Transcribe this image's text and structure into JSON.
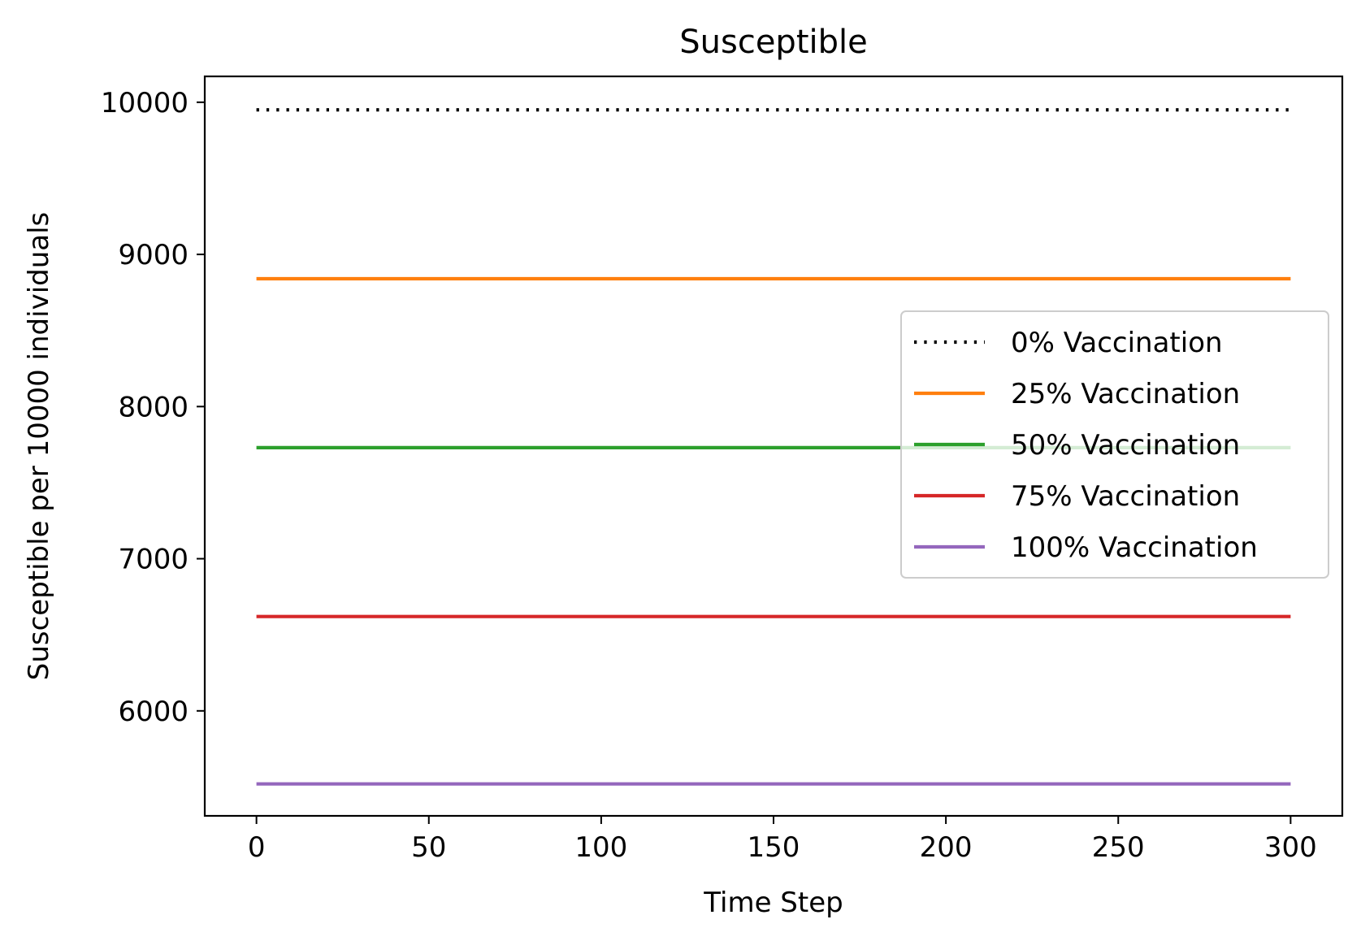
{
  "chart_data": {
    "type": "line",
    "title": "Susceptible",
    "xlabel": "Time Step",
    "ylabel": "Susceptible per 10000 individuals",
    "xlim": [
      -15,
      315
    ],
    "ylim": [
      5310,
      10170
    ],
    "xticks": [
      0,
      50,
      100,
      150,
      200,
      250,
      300
    ],
    "yticks": [
      6000,
      7000,
      8000,
      9000,
      10000
    ],
    "grid": false,
    "legend_position": "center-right",
    "series": [
      {
        "name": "0% Vaccination",
        "x": [
          0,
          300
        ],
        "y": [
          9950,
          9950
        ],
        "color": "#000000",
        "style": "dotted"
      },
      {
        "name": "25% Vaccination",
        "x": [
          0,
          300
        ],
        "y": [
          8840,
          8840
        ],
        "color": "#ff7f0e",
        "style": "solid"
      },
      {
        "name": "50% Vaccination",
        "x": [
          0,
          300
        ],
        "y": [
          7730,
          7730
        ],
        "color": "#2ca02c",
        "style": "solid"
      },
      {
        "name": "75% Vaccination",
        "x": [
          0,
          300
        ],
        "y": [
          6620,
          6620
        ],
        "color": "#d62728",
        "style": "solid"
      },
      {
        "name": "100% Vaccination",
        "x": [
          0,
          300
        ],
        "y": [
          5520,
          5520
        ],
        "color": "#9467bd",
        "style": "solid"
      }
    ]
  }
}
